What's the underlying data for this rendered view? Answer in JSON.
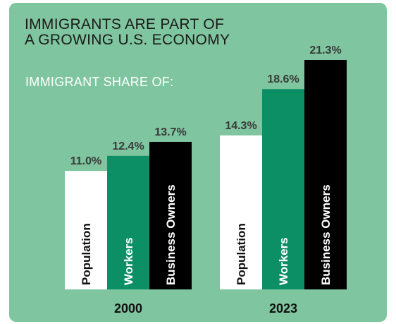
{
  "chart_data": {
    "type": "bar",
    "title": [
      "IMMIGRANTS ARE PART OF",
      "A GROWING U.S. ECONOMY"
    ],
    "subtitle": "IMMIGRANT SHARE OF:",
    "categories": [
      "2000",
      "2023"
    ],
    "series": [
      {
        "name": "Population",
        "values": [
          11.0,
          14.3
        ],
        "labels": [
          "11.0%",
          "14.3%"
        ],
        "color": "#ffffff",
        "text_color": "#111111"
      },
      {
        "name": "Workers",
        "values": [
          12.4,
          18.6
        ],
        "labels": [
          "12.4%",
          "18.6%"
        ],
        "color": "#0d8f66",
        "text_color": "#ffffff"
      },
      {
        "name": "Business Owners",
        "values": [
          13.7,
          21.3
        ],
        "labels": [
          "13.7%",
          "21.3%"
        ],
        "color": "#000000",
        "text_color": "#ffffff"
      }
    ],
    "ylim": [
      0,
      21.3
    ],
    "grid": false,
    "legend": "none"
  },
  "colors": {
    "background": "#7fc59f",
    "value_label": "#3a3a3a",
    "axis_label": "#111111"
  }
}
